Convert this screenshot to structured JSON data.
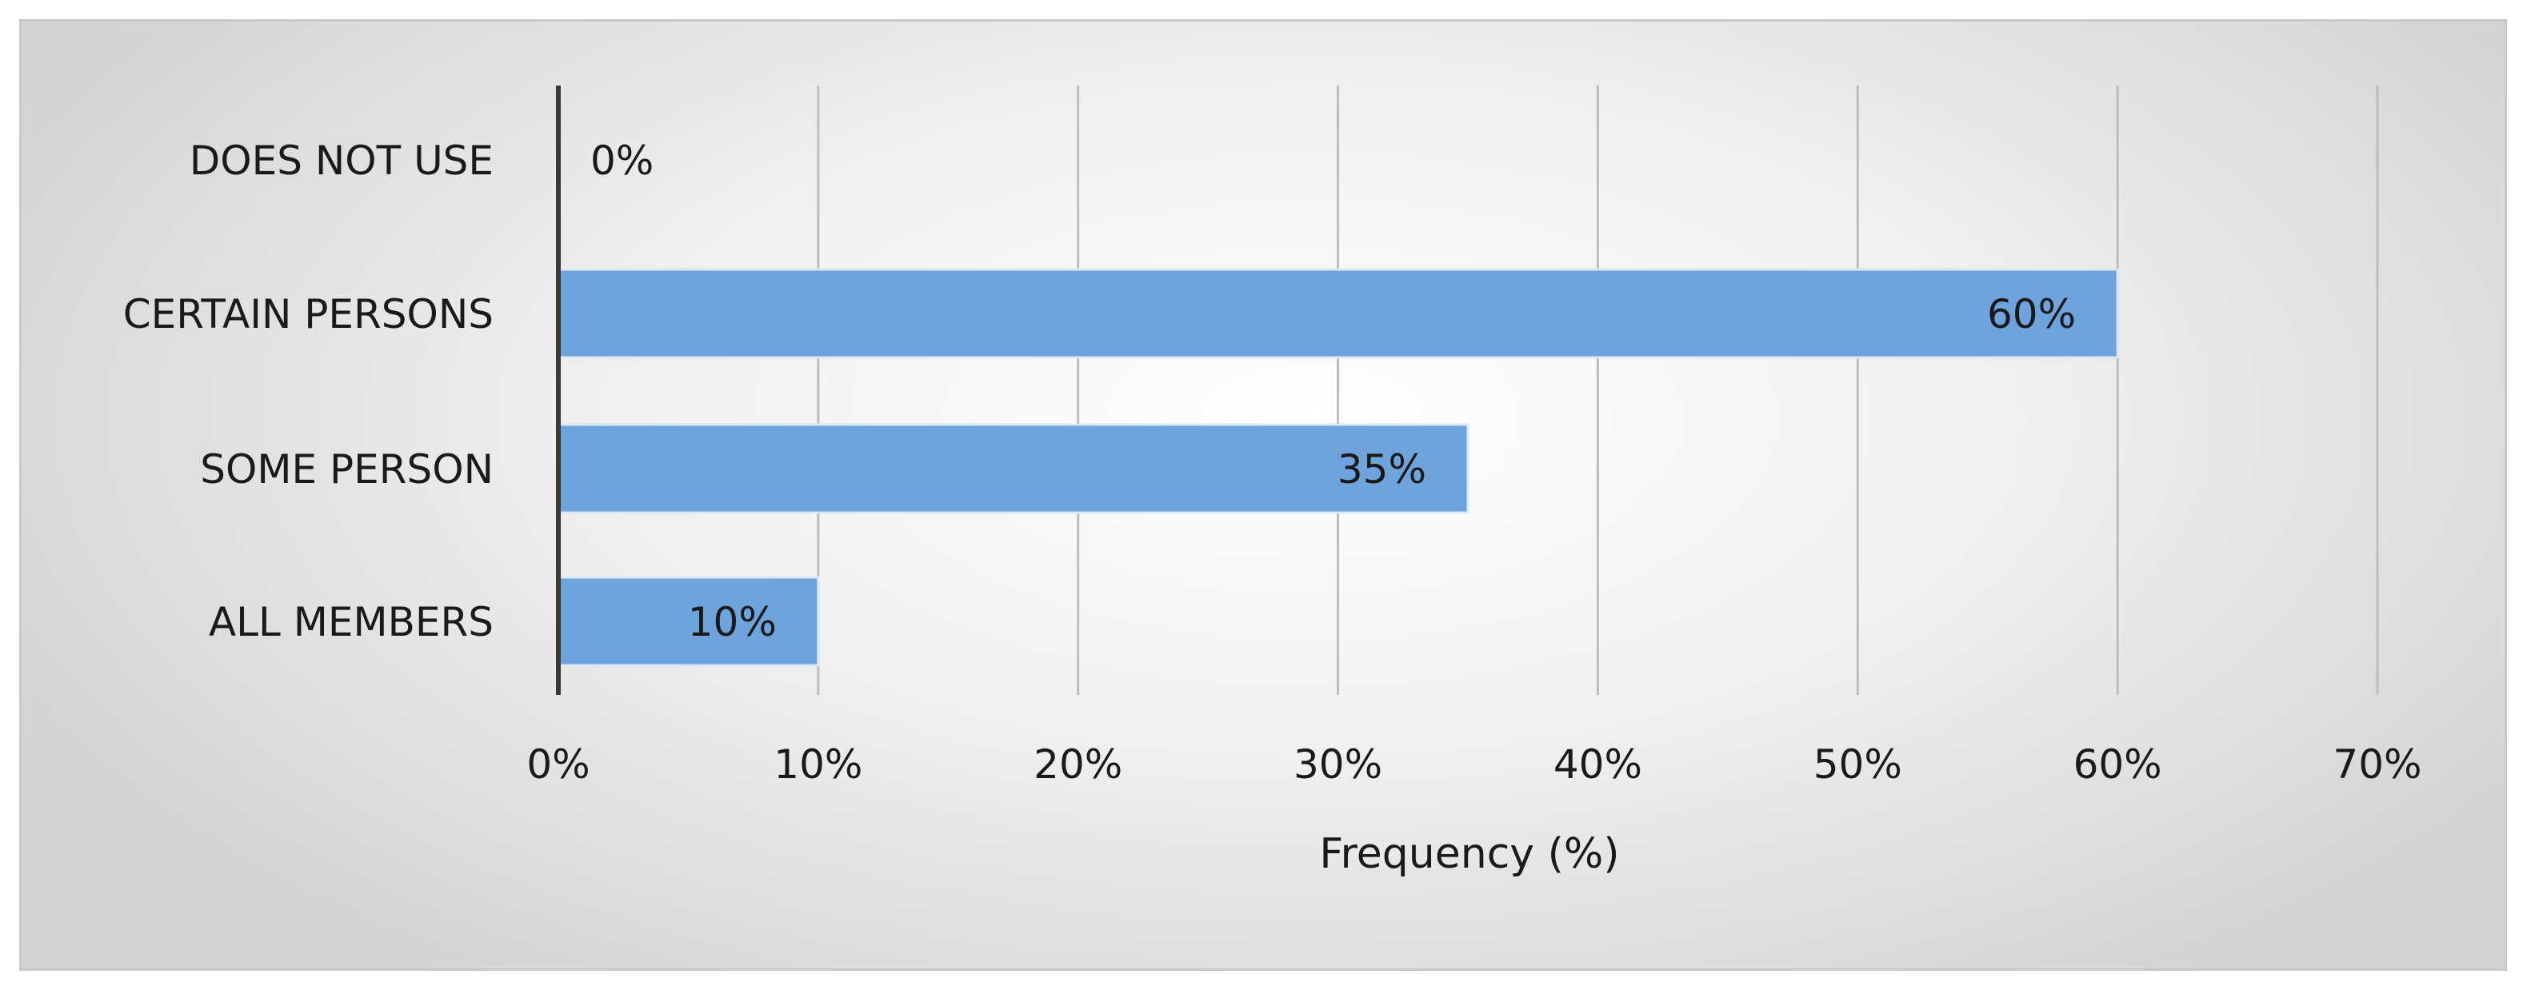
{
  "chart_data": {
    "type": "bar",
    "orientation": "horizontal",
    "categories": [
      "DOES NOT USE",
      "CERTAIN PERSONS",
      "SOME PERSON",
      "ALL MEMBERS"
    ],
    "values": [
      0,
      60,
      35,
      10
    ],
    "data_labels": [
      "0%",
      "60%",
      "35%",
      "10%"
    ],
    "xlabel": "Frequency (%)",
    "ylabel": "",
    "xlim": [
      0,
      70
    ],
    "x_ticks": [
      0,
      10,
      20,
      30,
      40,
      50,
      60,
      70
    ],
    "x_tick_labels": [
      "0%",
      "10%",
      "20%",
      "30%",
      "40%",
      "50%",
      "60%",
      "70%"
    ],
    "grid": true,
    "legend": "none",
    "bar_color": "#6fa3dc",
    "bar_edge_color": "#d9e8f7",
    "gridline_color": "#bdbdbd",
    "axis_color": "#3a3a3a"
  }
}
